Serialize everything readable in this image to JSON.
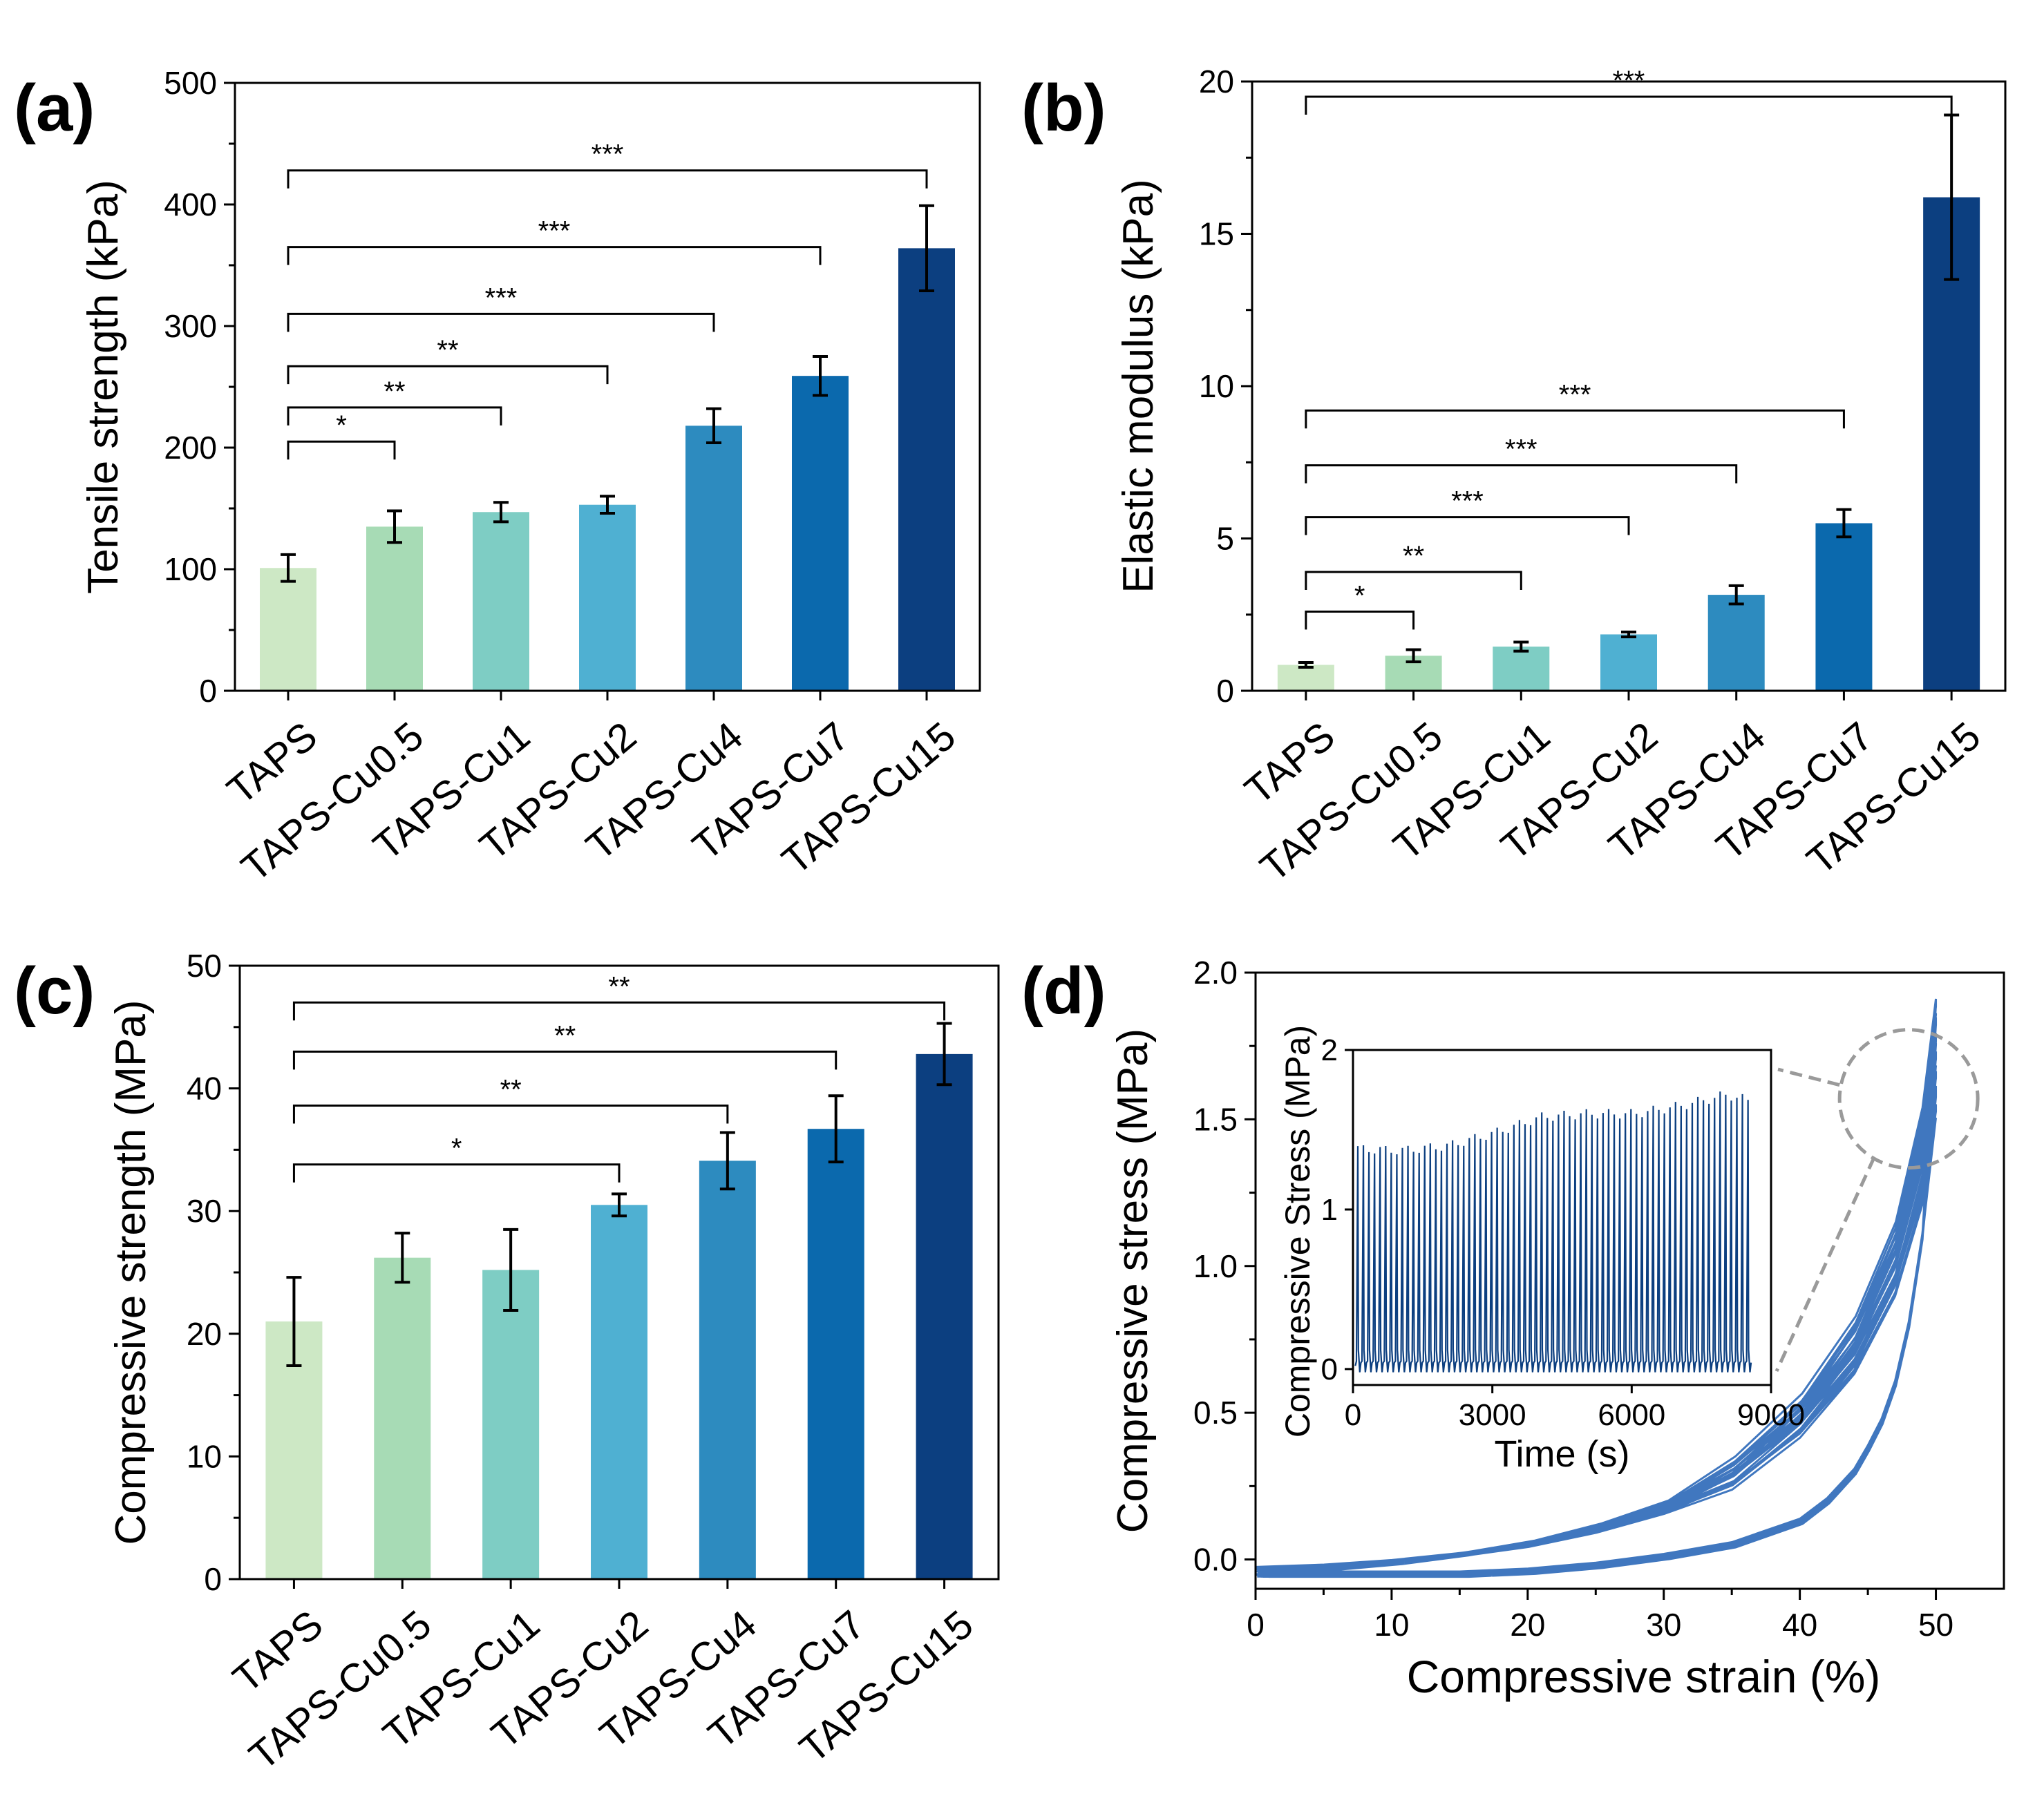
{
  "chart_data": [
    {
      "panel_label": "(a)",
      "type": "bar",
      "categories": [
        "TAPS",
        "TAPS-Cu0.5",
        "TAPS-Cu1",
        "TAPS-Cu2",
        "TAPS-Cu4",
        "TAPS-Cu7",
        "TAPS-Cu15"
      ],
      "values": [
        101,
        135,
        147,
        153,
        218,
        259,
        364
      ],
      "errors": [
        11,
        13,
        8,
        7,
        14,
        16,
        35
      ],
      "colors": [
        "#cde8c5",
        "#a7dbb5",
        "#7ecdc4",
        "#4fb0d2",
        "#2d8bbf",
        "#0b69ad",
        "#0c3f80"
      ],
      "xlabel": "",
      "ylabel": "Tensile  strength (kPa)",
      "ylim": [
        0,
        500
      ],
      "yticks": [
        0,
        100,
        200,
        300,
        400,
        500
      ],
      "significance": [
        {
          "from": 0,
          "to": 1,
          "label": "*",
          "level": 205
        },
        {
          "from": 0,
          "to": 2,
          "label": "**",
          "level": 233
        },
        {
          "from": 0,
          "to": 3,
          "label": "**",
          "level": 267
        },
        {
          "from": 0,
          "to": 4,
          "label": "***",
          "level": 310
        },
        {
          "from": 0,
          "to": 5,
          "label": "***",
          "level": 365
        },
        {
          "from": 0,
          "to": 6,
          "label": "***",
          "level": 428
        }
      ]
    },
    {
      "panel_label": "(b)",
      "type": "bar",
      "categories": [
        "TAPS",
        "TAPS-Cu0.5",
        "TAPS-Cu1",
        "TAPS-Cu2",
        "TAPS-Cu4",
        "TAPS-Cu7",
        "TAPS-Cu15"
      ],
      "values": [
        0.85,
        1.15,
        1.45,
        1.85,
        3.15,
        5.5,
        16.2
      ],
      "errors": [
        0.08,
        0.2,
        0.15,
        0.08,
        0.3,
        0.45,
        2.7
      ],
      "colors": [
        "#cde8c5",
        "#a7dbb5",
        "#7ecdc4",
        "#4fb0d2",
        "#2d8bbf",
        "#0b69ad",
        "#0c3f80"
      ],
      "xlabel": "",
      "ylabel": "Elastic modulus (kPa)",
      "ylim": [
        0,
        20
      ],
      "yticks": [
        0,
        5,
        10,
        15,
        20
      ],
      "significance": [
        {
          "from": 0,
          "to": 1,
          "label": "*",
          "level": 2.6
        },
        {
          "from": 0,
          "to": 2,
          "label": "**",
          "level": 3.9
        },
        {
          "from": 0,
          "to": 3,
          "label": "***",
          "level": 5.7
        },
        {
          "from": 0,
          "to": 4,
          "label": "***",
          "level": 7.4
        },
        {
          "from": 0,
          "to": 5,
          "label": "***",
          "level": 9.2
        },
        {
          "from": 0,
          "to": 6,
          "label": "***",
          "level": 19.5
        }
      ]
    },
    {
      "panel_label": "(c)",
      "type": "bar",
      "categories": [
        "TAPS",
        "TAPS-Cu0.5",
        "TAPS-Cu1",
        "TAPS-Cu2",
        "TAPS-Cu4",
        "TAPS-Cu7",
        "TAPS-Cu15"
      ],
      "values": [
        21,
        26.2,
        25.2,
        30.5,
        34.1,
        36.7,
        42.8
      ],
      "errors": [
        3.6,
        2.0,
        3.3,
        0.9,
        2.3,
        2.7,
        2.5
      ],
      "colors": [
        "#cde8c5",
        "#a7dbb5",
        "#7ecdc4",
        "#4fb0d2",
        "#2d8bbf",
        "#0b69ad",
        "#0c3f80"
      ],
      "xlabel": "",
      "ylabel": "Compressive strength (MPa)",
      "ylim": [
        0,
        50
      ],
      "yticks": [
        0,
        10,
        20,
        30,
        40,
        50
      ],
      "significance": [
        {
          "from": 0,
          "to": 3,
          "label": "*",
          "level": 33.8
        },
        {
          "from": 0,
          "to": 4,
          "label": "**",
          "level": 38.6
        },
        {
          "from": 0,
          "to": 5,
          "label": "**",
          "level": 43.0
        },
        {
          "from": 0,
          "to": 6,
          "label": "**",
          "level": 47.0
        }
      ]
    },
    {
      "panel_label": "(d)",
      "type": "line",
      "description": "cyclic compressive stress-strain hysteresis loops",
      "xlabel": "Compressive strain (%)",
      "ylabel": "Compressive stress (MPa)",
      "xlim": [
        0,
        55
      ],
      "ylim": [
        -0.1,
        2.0
      ],
      "xticks": [
        0,
        10,
        20,
        30,
        40,
        50
      ],
      "yticks": [
        0.0,
        0.5,
        1.0,
        1.5,
        2.0
      ],
      "ytick_labels": [
        "0.0",
        "0.5",
        "1.0",
        "1.5",
        "2.0"
      ],
      "loading_curve": {
        "x": [
          0,
          5,
          10,
          15,
          20,
          25,
          30,
          35,
          40,
          44,
          47,
          49,
          50
        ],
        "y": [
          -0.04,
          -0.03,
          -0.01,
          0.02,
          0.06,
          0.12,
          0.2,
          0.33,
          0.55,
          0.82,
          1.15,
          1.55,
          1.93
        ]
      },
      "unloading_curve": {
        "x": [
          50,
          49,
          48,
          47,
          46,
          45,
          44,
          42,
          40,
          35,
          30,
          25,
          20,
          15,
          10,
          5,
          0
        ],
        "y": [
          1.93,
          1.1,
          0.8,
          0.6,
          0.47,
          0.38,
          0.3,
          0.2,
          0.13,
          0.05,
          0.01,
          -0.02,
          -0.04,
          -0.05,
          -0.05,
          -0.05,
          -0.05
        ]
      },
      "cycles": 70,
      "color": "#1f5fb4",
      "inset": {
        "type": "line",
        "xlabel": "Time (s)",
        "ylabel": "Compressive Stress (MPa)",
        "xlim": [
          0,
          9000
        ],
        "ylim": [
          -0.1,
          2.0
        ],
        "xticks": [
          0,
          3000,
          6000,
          9000
        ],
        "yticks": [
          0,
          1,
          2
        ],
        "peaks": {
          "t": [
            0,
            1000,
            2000,
            3000,
            4000,
            5000,
            6000,
            7000,
            8000,
            8500
          ],
          "stress": [
            1.38,
            1.37,
            1.4,
            1.48,
            1.58,
            1.6,
            1.6,
            1.65,
            1.72,
            1.68
          ]
        },
        "baseline": 0.02,
        "period_s": 120,
        "color": "#0c3f80"
      }
    }
  ]
}
